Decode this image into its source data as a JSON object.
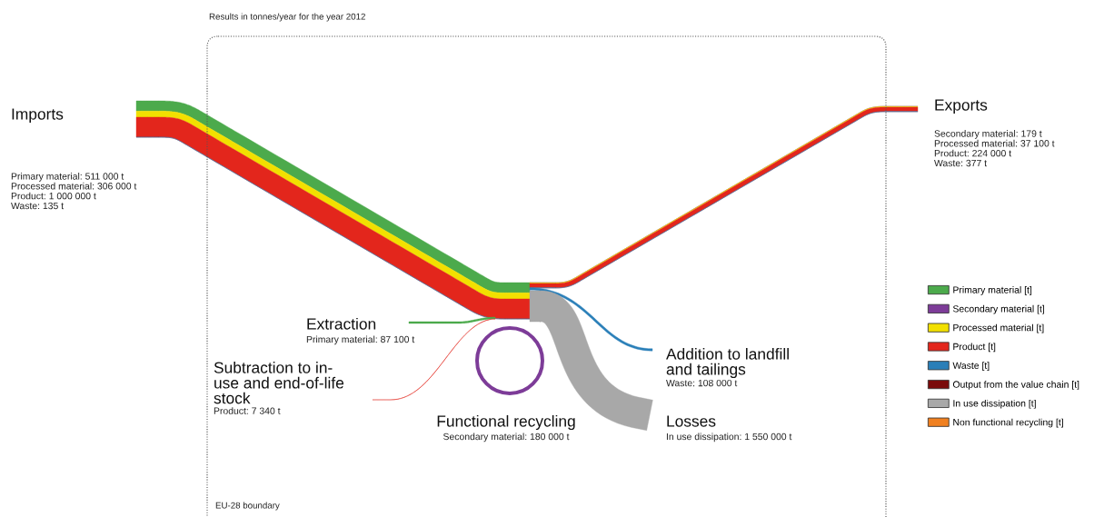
{
  "chart_data": {
    "type": "other",
    "title": "Results in tonnes/year for the year 2012",
    "annotations": [
      "EU-28 boundary"
    ],
    "categories": [
      "Imports",
      "Exports",
      "Extraction",
      "Subtraction to in-\nuse and end-of-life\nstock",
      "Addition to landfill\nand tailings",
      "Functional recycling",
      "Losses"
    ],
    "series": [
      {
        "name": "Primary material [t]",
        "color": "#4caa4c",
        "values": [
          511000,
          null,
          87100,
          null,
          null,
          null,
          null
        ],
        "value_labels": [
          "Primary material: 511 000 t",
          null,
          "Primary material: 87 100 t",
          null,
          null,
          null,
          null
        ]
      },
      {
        "name": "Secondary material [t]",
        "color": "#7d3c98",
        "values": [
          null,
          179,
          null,
          null,
          null,
          180000,
          null
        ],
        "value_labels": [
          null,
          "Secondary material: 179 t",
          null,
          null,
          null,
          "Secondary material: 180 000 t",
          null
        ]
      },
      {
        "name": "Processed material [t]",
        "color": "#f2e000",
        "values": [
          306000,
          37100,
          null,
          null,
          null,
          null,
          null
        ],
        "value_labels": [
          "Processed material: 306 000 t",
          "Processed material: 37 100 t",
          null,
          null,
          null,
          null,
          null
        ]
      },
      {
        "name": "Product [t]",
        "color": "#e3261c",
        "values": [
          1000000,
          224000,
          null,
          7340,
          null,
          null,
          null
        ],
        "value_labels": [
          "Product: 1 000 000 t",
          "Product: 224 000 t",
          null,
          "Product: 7 340 t",
          null,
          null,
          null
        ]
      },
      {
        "name": "Waste [t]",
        "color": "#2a7fb8",
        "values": [
          135,
          377,
          null,
          null,
          108000,
          null,
          null
        ],
        "value_labels": [
          "Waste: 135 t",
          "Waste: 377 t",
          null,
          null,
          "Waste: 108 000 t",
          null,
          null
        ]
      },
      {
        "name": "Output from the value chain [t]",
        "color": "#7a0a0a",
        "values": [
          null,
          null,
          null,
          null,
          null,
          null,
          null
        ]
      },
      {
        "name": "In use dissipation [t]",
        "color": "#a8a8a8",
        "values": [
          null,
          null,
          null,
          null,
          null,
          null,
          1550000
        ],
        "value_labels": [
          null,
          null,
          null,
          null,
          null,
          null,
          "In use dissipation: 1 550 000 t"
        ]
      },
      {
        "name": "Non functional recycling [t]",
        "color": "#f08020",
        "values": [
          null,
          null,
          null,
          null,
          null,
          null,
          null
        ]
      }
    ],
    "legend": "right"
  }
}
